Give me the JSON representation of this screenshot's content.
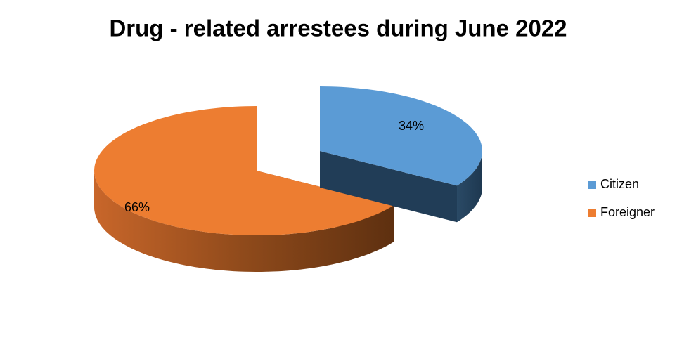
{
  "chart_data": {
    "type": "pie3d",
    "title": "Drug - related arrestees during June 2022",
    "categories": [
      "Citizen",
      "Foreigner"
    ],
    "values": [
      34,
      66
    ],
    "value_labels": [
      "34%",
      "66%"
    ],
    "colors": [
      "#5b9bd5",
      "#ed7d31"
    ],
    "legend": "right"
  }
}
